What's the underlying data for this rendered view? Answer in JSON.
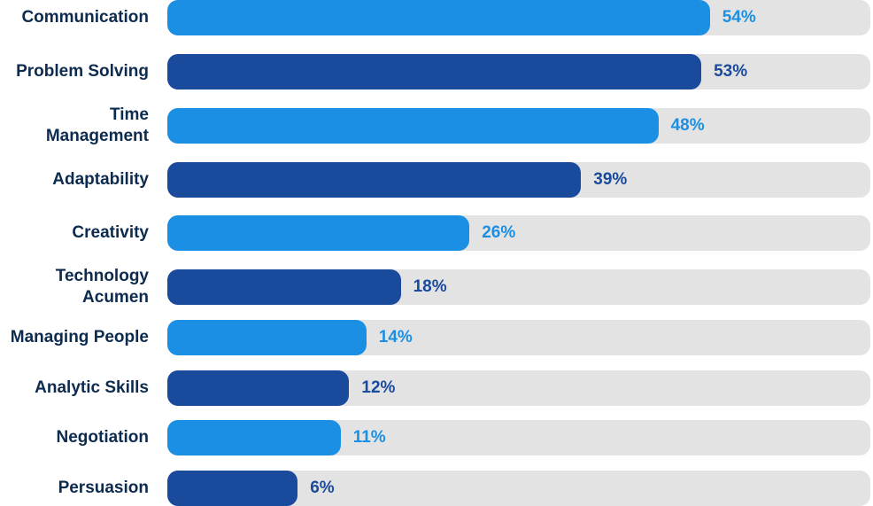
{
  "chart_data": {
    "type": "bar",
    "orientation": "horizontal",
    "categories": [
      "Communication",
      "Problem Solving",
      "Time\nManagement",
      "Adaptability",
      "Creativity",
      "Technology\nAcumen",
      "Managing People",
      "Analytic Skills",
      "Negotiation",
      "Persuasion"
    ],
    "values": [
      54,
      53,
      48,
      39,
      26,
      18,
      14,
      12,
      11,
      6
    ],
    "value_labels": [
      "54%",
      "53%",
      "48%",
      "39%",
      "26%",
      "18%",
      "14%",
      "12%",
      "11%",
      "6%"
    ],
    "xlim": [
      0,
      100
    ],
    "title": "",
    "xlabel": "",
    "ylabel": "",
    "grid": false,
    "legend": "none",
    "colors": {
      "light": "#1a8fe3",
      "dark": "#1a4a9c",
      "track": "#e3e3e3",
      "category_text": "#0d2b4e"
    },
    "bar_colors": [
      "light",
      "dark",
      "light",
      "dark",
      "light",
      "dark",
      "light",
      "dark",
      "light",
      "dark"
    ]
  }
}
